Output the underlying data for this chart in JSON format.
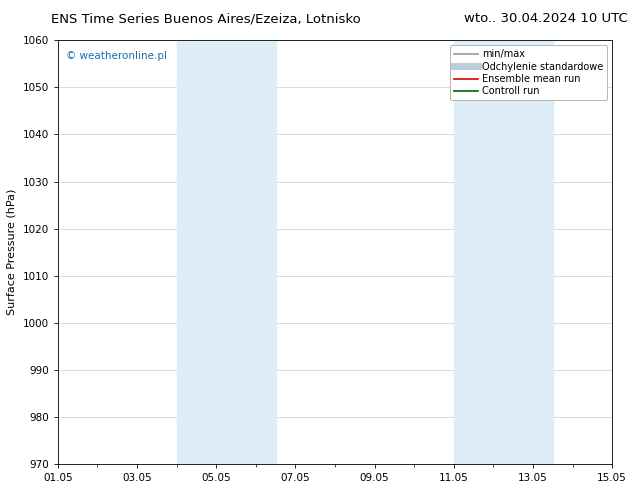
{
  "title_left": "ENS Time Series Buenos Aires/Ezeiza, Lotnisko",
  "title_right": "wto.. 30.04.2024 10 UTC",
  "ylabel": "Surface Pressure (hPa)",
  "ylim": [
    970,
    1060
  ],
  "yticks": [
    970,
    980,
    990,
    1000,
    1010,
    1020,
    1030,
    1040,
    1050,
    1060
  ],
  "xlim": [
    0,
    14
  ],
  "xtick_labels": [
    "01.05",
    "03.05",
    "05.05",
    "07.05",
    "09.05",
    "11.05",
    "13.05",
    "15.05"
  ],
  "xtick_positions": [
    0,
    2,
    4,
    6,
    8,
    10,
    12,
    14
  ],
  "shaded_bands": [
    {
      "x_start": 3.0,
      "x_end": 5.5,
      "color": "#ddeef8"
    },
    {
      "x_start": 10.0,
      "x_end": 12.5,
      "color": "#ddeef8"
    }
  ],
  "watermark_text": "© weatheronline.pl",
  "watermark_color": "#1a6faf",
  "legend_entries": [
    {
      "label": "min/max",
      "color": "#999999",
      "lw": 1.2,
      "style": "solid"
    },
    {
      "label": "Odchylenie standardowe",
      "color": "#bbccdd",
      "lw": 5,
      "style": "solid"
    },
    {
      "label": "Ensemble mean run",
      "color": "#dd0000",
      "lw": 1.2,
      "style": "solid"
    },
    {
      "label": "Controll run",
      "color": "#006600",
      "lw": 1.2,
      "style": "solid"
    }
  ],
  "background_color": "#ffffff",
  "grid_color": "#cccccc",
  "title_fontsize": 9.5,
  "ylabel_fontsize": 8,
  "tick_fontsize": 7.5,
  "watermark_fontsize": 7.5,
  "legend_fontsize": 7
}
